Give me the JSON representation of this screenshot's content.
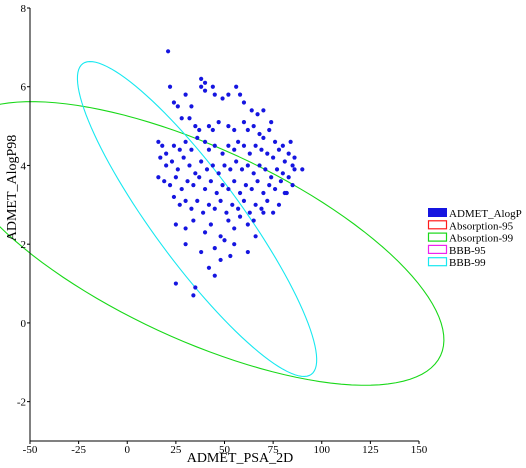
{
  "chart_data": {
    "type": "scatter",
    "xlabel": "ADMET_PSA_2D",
    "ylabel": "ADMET_AlogP98",
    "xlim": [
      -50,
      150
    ],
    "ylim": [
      -3,
      8
    ],
    "xticks": [
      "-50",
      "-25",
      "0",
      "25",
      "50",
      "75",
      "100",
      "125",
      "150"
    ],
    "xtick_values": [
      -50,
      -25,
      0,
      25,
      50,
      75,
      100,
      125,
      150
    ],
    "yticks": [
      "-2",
      "0",
      "2",
      "4",
      "6",
      "8"
    ],
    "ytick_values": [
      -2,
      0,
      2,
      4,
      6,
      8
    ],
    "grid": false,
    "legend_position": "right",
    "scatter": {
      "name": "ADMET_AlogP",
      "color": "#1515e0",
      "points": [
        [
          21,
          6.9
        ],
        [
          22,
          6.0
        ],
        [
          24,
          5.6
        ],
        [
          30,
          5.8
        ],
        [
          33,
          5.5
        ],
        [
          38,
          6.2
        ],
        [
          38,
          6.0
        ],
        [
          40,
          5.9
        ],
        [
          40,
          6.1
        ],
        [
          44,
          6.0
        ],
        [
          45,
          5.8
        ],
        [
          49,
          5.7
        ],
        [
          52,
          5.8
        ],
        [
          56,
          6.0
        ],
        [
          58,
          5.8
        ],
        [
          60,
          5.6
        ],
        [
          64,
          5.4
        ],
        [
          67,
          5.3
        ],
        [
          70,
          5.4
        ],
        [
          74,
          5.1
        ],
        [
          26,
          5.5
        ],
        [
          28,
          5.2
        ],
        [
          32,
          5.2
        ],
        [
          35,
          5.0
        ],
        [
          37,
          4.9
        ],
        [
          42,
          5.0
        ],
        [
          44,
          4.9
        ],
        [
          47,
          5.1
        ],
        [
          52,
          5.0
        ],
        [
          55,
          4.9
        ],
        [
          60,
          5.1
        ],
        [
          62,
          4.9
        ],
        [
          65,
          5.0
        ],
        [
          68,
          4.8
        ],
        [
          70,
          4.7
        ],
        [
          73,
          4.9
        ],
        [
          76,
          4.6
        ],
        [
          80,
          4.5
        ],
        [
          84,
          4.6
        ],
        [
          86,
          4.2
        ],
        [
          16,
          4.6
        ],
        [
          18,
          4.5
        ],
        [
          20,
          4.3
        ],
        [
          24,
          4.5
        ],
        [
          27,
          4.4
        ],
        [
          30,
          4.6
        ],
        [
          33,
          4.4
        ],
        [
          36,
          4.7
        ],
        [
          40,
          4.6
        ],
        [
          42,
          4.4
        ],
        [
          45,
          4.5
        ],
        [
          49,
          4.3
        ],
        [
          52,
          4.5
        ],
        [
          55,
          4.4
        ],
        [
          57,
          4.6
        ],
        [
          60,
          4.5
        ],
        [
          63,
          4.3
        ],
        [
          66,
          4.5
        ],
        [
          69,
          4.4
        ],
        [
          72,
          4.3
        ],
        [
          75,
          4.2
        ],
        [
          78,
          4.4
        ],
        [
          81,
          4.1
        ],
        [
          83,
          4.3
        ],
        [
          85,
          4.0
        ],
        [
          17,
          4.2
        ],
        [
          20,
          4.0
        ],
        [
          23,
          4.1
        ],
        [
          26,
          3.9
        ],
        [
          29,
          4.2
        ],
        [
          32,
          4.0
        ],
        [
          35,
          3.8
        ],
        [
          38,
          4.1
        ],
        [
          41,
          3.9
        ],
        [
          44,
          4.0
        ],
        [
          47,
          3.8
        ],
        [
          50,
          4.0
        ],
        [
          53,
          3.9
        ],
        [
          56,
          4.1
        ],
        [
          59,
          3.9
        ],
        [
          62,
          4.0
        ],
        [
          65,
          3.8
        ],
        [
          68,
          4.0
        ],
        [
          71,
          3.9
        ],
        [
          74,
          3.7
        ],
        [
          77,
          3.9
        ],
        [
          80,
          3.8
        ],
        [
          83,
          3.7
        ],
        [
          86,
          3.9
        ],
        [
          90,
          3.9
        ],
        [
          16,
          3.7
        ],
        [
          19,
          3.6
        ],
        [
          22,
          3.5
        ],
        [
          25,
          3.7
        ],
        [
          28,
          3.4
        ],
        [
          31,
          3.6
        ],
        [
          34,
          3.5
        ],
        [
          37,
          3.7
        ],
        [
          40,
          3.4
        ],
        [
          43,
          3.6
        ],
        [
          46,
          3.3
        ],
        [
          49,
          3.5
        ],
        [
          52,
          3.4
        ],
        [
          55,
          3.6
        ],
        [
          58,
          3.3
        ],
        [
          61,
          3.5
        ],
        [
          64,
          3.4
        ],
        [
          67,
          3.6
        ],
        [
          70,
          3.3
        ],
        [
          73,
          3.5
        ],
        [
          76,
          3.4
        ],
        [
          79,
          3.6
        ],
        [
          82,
          3.3
        ],
        [
          85,
          3.5
        ],
        [
          24,
          3.2
        ],
        [
          27,
          3.0
        ],
        [
          30,
          3.1
        ],
        [
          33,
          2.9
        ],
        [
          36,
          3.1
        ],
        [
          39,
          2.8
        ],
        [
          42,
          3.0
        ],
        [
          45,
          2.9
        ],
        [
          48,
          3.1
        ],
        [
          51,
          2.8
        ],
        [
          54,
          3.0
        ],
        [
          57,
          2.9
        ],
        [
          60,
          3.1
        ],
        [
          63,
          2.8
        ],
        [
          66,
          3.0
        ],
        [
          69,
          2.9
        ],
        [
          72,
          3.1
        ],
        [
          75,
          2.8
        ],
        [
          78,
          3.0
        ],
        [
          81,
          3.3
        ],
        [
          25,
          2.5
        ],
        [
          30,
          2.4
        ],
        [
          34,
          2.6
        ],
        [
          40,
          2.3
        ],
        [
          43,
          2.5
        ],
        [
          48,
          2.2
        ],
        [
          52,
          2.6
        ],
        [
          55,
          2.4
        ],
        [
          58,
          2.7
        ],
        [
          62,
          2.5
        ],
        [
          65,
          2.6
        ],
        [
          70,
          2.8
        ],
        [
          30,
          2.0
        ],
        [
          38,
          1.8
        ],
        [
          45,
          1.9
        ],
        [
          50,
          2.1
        ],
        [
          55,
          2.0
        ],
        [
          62,
          1.8
        ],
        [
          66,
          2.2
        ],
        [
          42,
          1.4
        ],
        [
          48,
          1.6
        ],
        [
          53,
          1.7
        ],
        [
          45,
          1.2
        ],
        [
          35,
          0.9
        ],
        [
          25,
          1.0
        ],
        [
          34,
          0.7
        ]
      ]
    },
    "ellipses": [
      {
        "name": "Absorption-95",
        "color": "#ff1a1a",
        "cx": 55.6,
        "cy": 2.13,
        "pts": [
          [
            102.2,
            -0.93
          ],
          [
            66.1,
            -0.67
          ],
          [
            20.0,
            3.57
          ],
          [
            9.0,
            5.19
          ],
          [
            90.6,
            -0.31
          ]
        ]
      },
      {
        "name": "Absorption-99",
        "color": "#18d818",
        "cx": 55.0,
        "cy": 2.12,
        "pts": [
          [
            147.2,
            -1.4
          ],
          [
            72.3,
            -1.21
          ],
          [
            9.2,
            5.13
          ],
          [
            -12.9,
            5.41
          ],
          [
            105.0,
            -1.53
          ]
        ]
      },
      {
        "name": "BBB-95",
        "color": "#ee22ee",
        "cx": 35.5,
        "cy": 3.0,
        "pts": [
          [
            69.2,
            -0.01
          ],
          [
            48.4,
            0.68
          ],
          [
            2.5,
            6.02
          ],
          [
            -5.5,
            6.35
          ],
          [
            43.8,
            0.27
          ]
        ]
      },
      {
        "name": "BBB-99",
        "color": "#17e8f0",
        "cx": 35.6,
        "cy": 3.05,
        "pts": [
          [
            96.8,
            -1.15
          ],
          [
            85.8,
            -1.31
          ],
          [
            -24.6,
            5.83
          ],
          [
            -25.6,
            6.26
          ],
          [
            65.4,
            -0.65
          ]
        ]
      }
    ],
    "legend": [
      {
        "label": "ADMET_AlogP",
        "color": "#1515e0",
        "kind": "fill"
      },
      {
        "label": "Absorption-95",
        "color": "#ff1a1a",
        "kind": "line"
      },
      {
        "label": "Absorption-99",
        "color": "#18d818",
        "kind": "line"
      },
      {
        "label": "BBB-95",
        "color": "#ee22ee",
        "kind": "line"
      },
      {
        "label": "BBB-99",
        "color": "#17e8f0",
        "kind": "line"
      }
    ]
  }
}
